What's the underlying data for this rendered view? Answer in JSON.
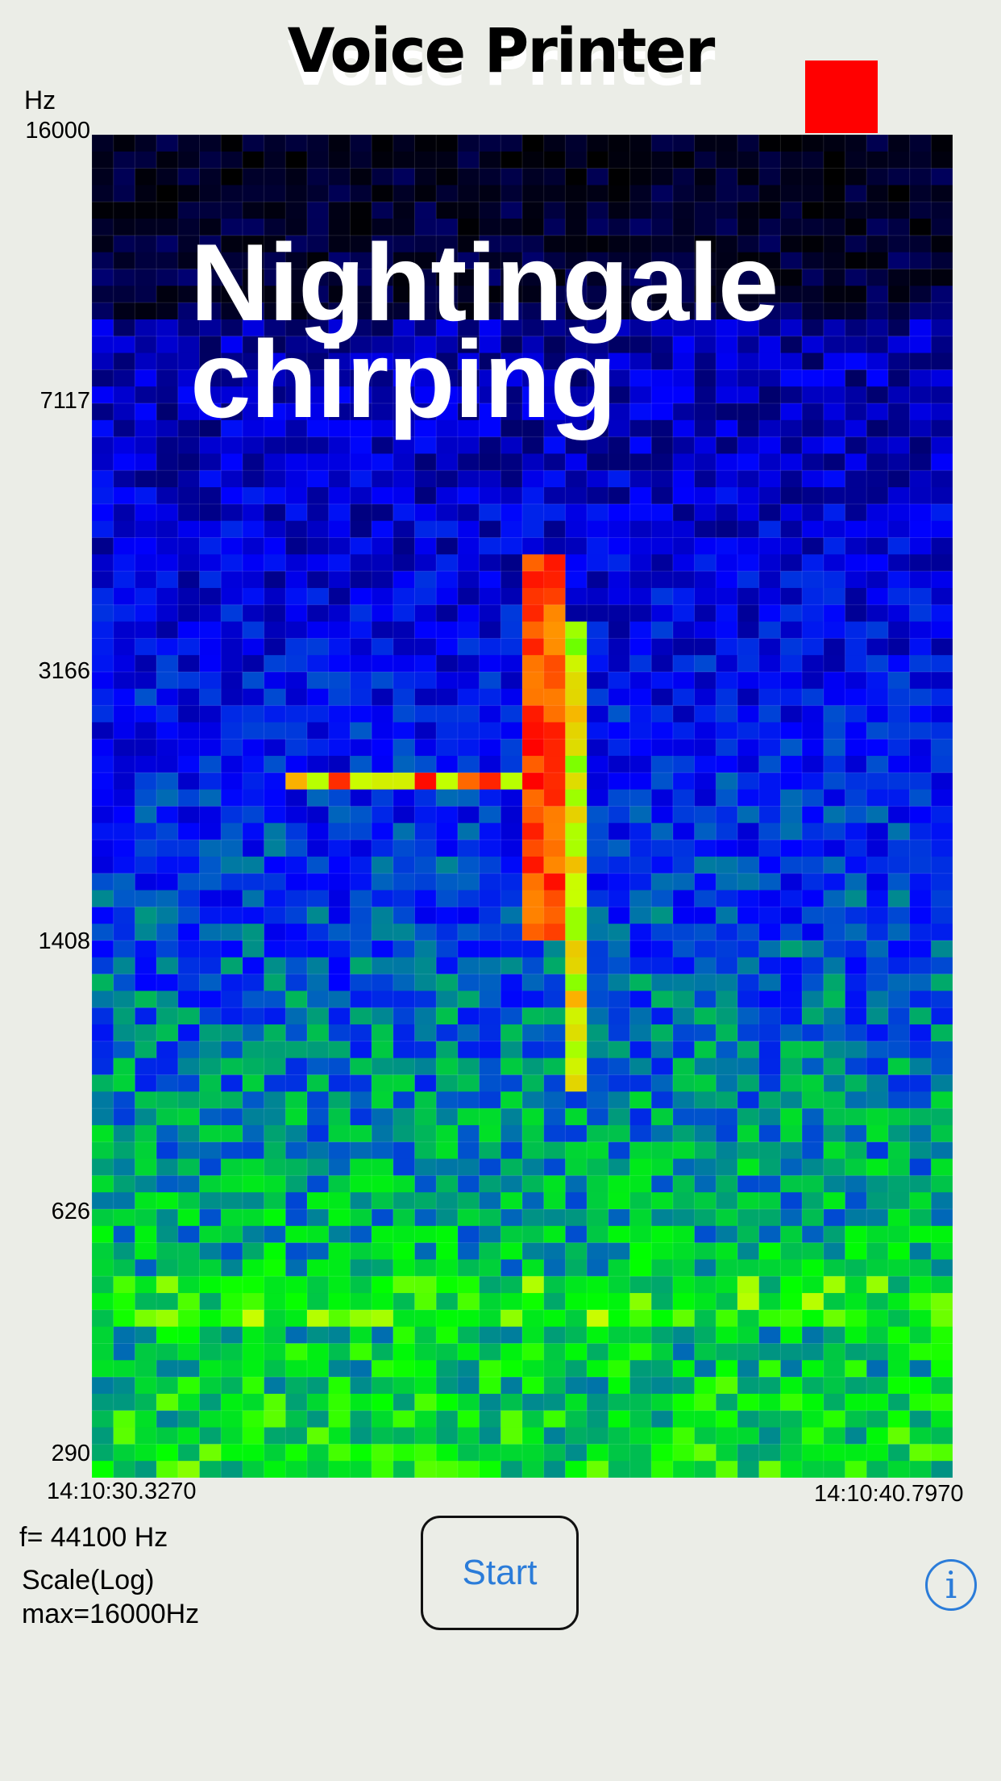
{
  "app": {
    "title": "Voice Printer"
  },
  "overlay": {
    "caption": "Nightingale\nchirping"
  },
  "spectrogram": {
    "y_unit": "Hz",
    "y_ticks": [
      "16000",
      "7117",
      "3166",
      "1408",
      "626",
      "290"
    ],
    "x_start": "14:10:30.3270",
    "x_end": "14:10:40.7970",
    "columns": 40,
    "rows": 80,
    "scale": "log",
    "colors": {
      "low": "#00008c",
      "mid": "#0000ff",
      "green": "#00d040",
      "high": "#ffff00",
      "peak": "#ff0000"
    }
  },
  "status": {
    "sample_rate": "f= 44100 Hz",
    "scale_line1": "Scale(Log)",
    "scale_line2": "max=16000Hz"
  },
  "controls": {
    "start_label": "Start",
    "info_label": "i"
  },
  "recording_indicator": {
    "color": "#ff0000"
  }
}
